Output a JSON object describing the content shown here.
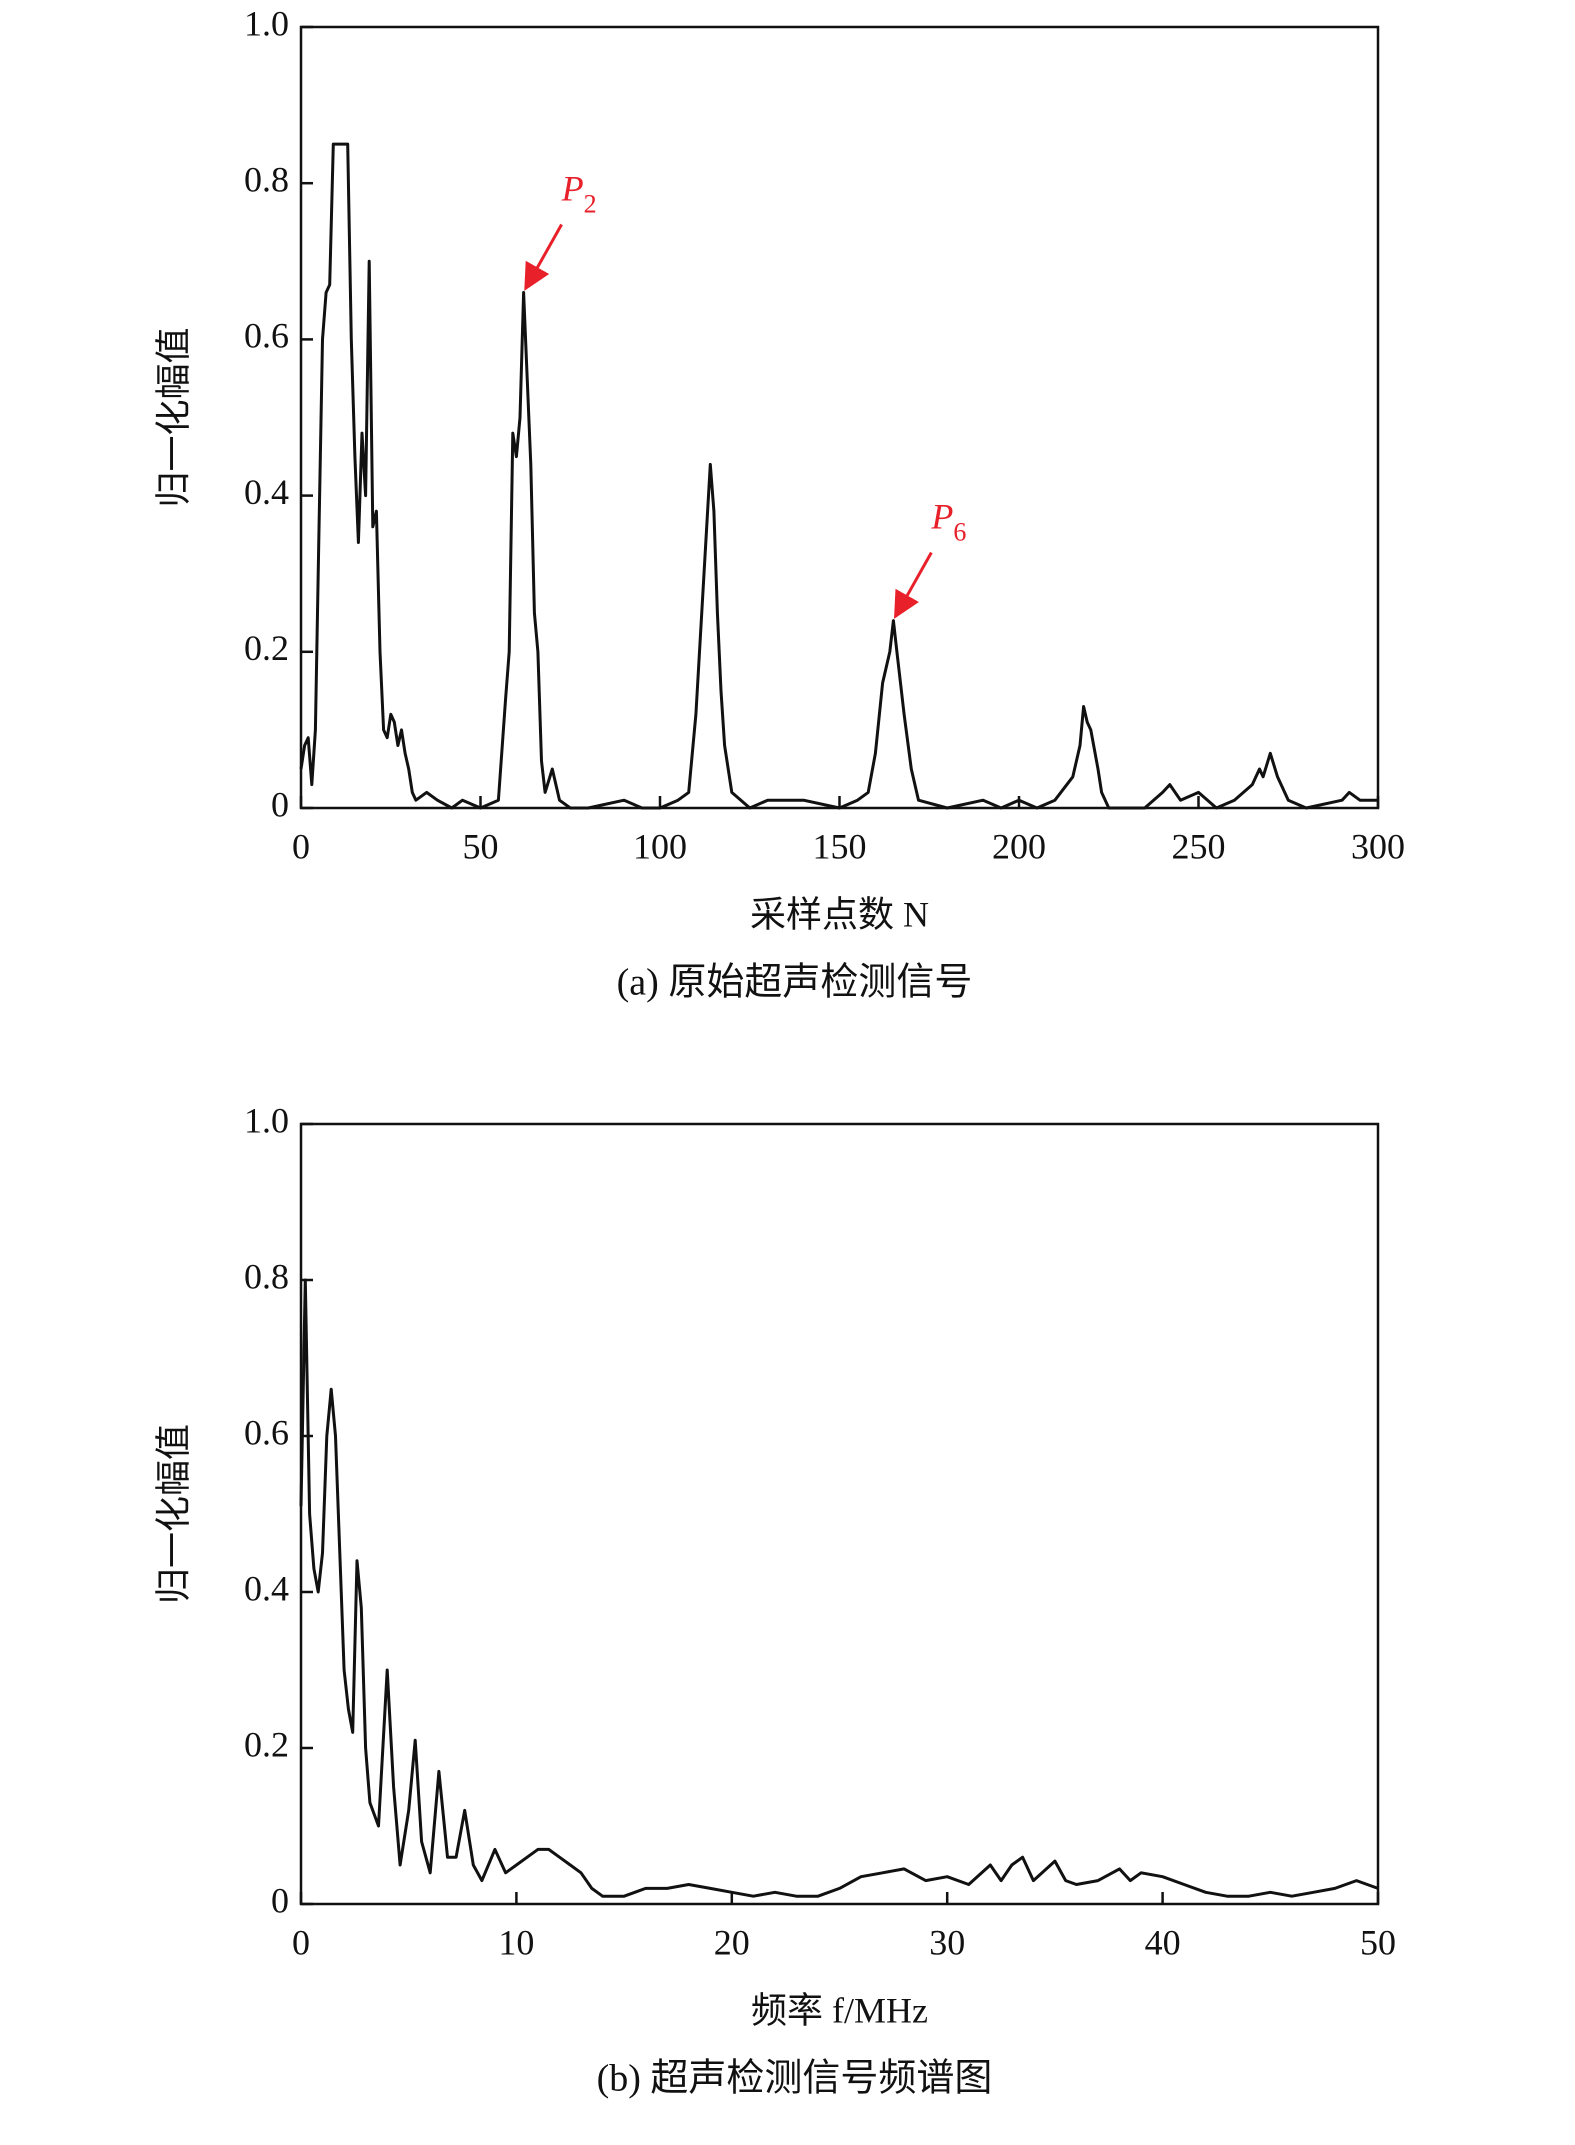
{
  "chart_data": [
    {
      "type": "line",
      "caption": "(a) 原始超声检测信号",
      "xlabel": "采样点数 N",
      "ylabel": "归一化幅值",
      "xlim": [
        0,
        300
      ],
      "xticks": [
        0,
        50,
        100,
        150,
        200,
        250,
        300
      ],
      "ylim": [
        0,
        1
      ],
      "yticks": [
        0,
        0.2,
        0.4,
        0.6,
        0.8,
        {
          "value": 1,
          "label": "1.0"
        }
      ],
      "annotations": [
        {
          "label": "P",
          "subscript": "2",
          "x": 62,
          "y": 0.66,
          "color": "#e8202a"
        },
        {
          "label": "P",
          "subscript": "6",
          "x": 165,
          "y": 0.24,
          "color": "#e8202a"
        }
      ],
      "series": [
        {
          "color": "#111111",
          "x": [
            0,
            1,
            2,
            3,
            4,
            5,
            6,
            7,
            8,
            9,
            10,
            11,
            12,
            13,
            14,
            15,
            16,
            17,
            18,
            19,
            20,
            21,
            22,
            23,
            24,
            25,
            26,
            27,
            28,
            29,
            30,
            31,
            32,
            35,
            38,
            42,
            45,
            50,
            55,
            57,
            58,
            59,
            60,
            61,
            62,
            63,
            64,
            65,
            66,
            67,
            68,
            70,
            72,
            75,
            80,
            90,
            95,
            100,
            105,
            108,
            110,
            112,
            114,
            115,
            116,
            117,
            118,
            120,
            125,
            130,
            140,
            150,
            155,
            158,
            160,
            162,
            164,
            165,
            166,
            167,
            168,
            170,
            172,
            180,
            190,
            195,
            200,
            205,
            210,
            215,
            217,
            218,
            219,
            220,
            222,
            223,
            225,
            235,
            240,
            242,
            245,
            250,
            255,
            260,
            265,
            267,
            268,
            270,
            272,
            275,
            280,
            290,
            292,
            295,
            300
          ],
          "values": [
            0.05,
            0.08,
            0.09,
            0.03,
            0.1,
            0.35,
            0.6,
            0.66,
            0.67,
            0.85,
            0.85,
            0.85,
            0.85,
            0.85,
            0.6,
            0.45,
            0.34,
            0.48,
            0.4,
            0.7,
            0.36,
            0.38,
            0.2,
            0.1,
            0.09,
            0.12,
            0.11,
            0.08,
            0.1,
            0.07,
            0.05,
            0.02,
            0.01,
            0.02,
            0.01,
            0,
            0.01,
            0,
            0.01,
            0.14,
            0.2,
            0.48,
            0.45,
            0.5,
            0.66,
            0.55,
            0.44,
            0.25,
            0.2,
            0.06,
            0.02,
            0.05,
            0.01,
            0,
            0,
            0.01,
            0,
            0,
            0.01,
            0.02,
            0.12,
            0.28,
            0.44,
            0.38,
            0.25,
            0.15,
            0.08,
            0.02,
            0,
            0.01,
            0.01,
            0,
            0.01,
            0.02,
            0.07,
            0.16,
            0.2,
            0.24,
            0.2,
            0.16,
            0.12,
            0.05,
            0.01,
            0,
            0.01,
            0,
            0.01,
            0,
            0.01,
            0.04,
            0.08,
            0.13,
            0.11,
            0.1,
            0.05,
            0.02,
            0,
            0,
            0.02,
            0.03,
            0.01,
            0.02,
            0,
            0.01,
            0.03,
            0.05,
            0.04,
            0.07,
            0.04,
            0.01,
            0,
            0.01,
            0.02,
            0.01,
            0.01
          ]
        }
      ]
    },
    {
      "type": "line",
      "caption": "(b) 超声检测信号频谱图",
      "xlabel": "频率 f/MHz",
      "ylabel": "归一化幅值",
      "xlim": [
        0,
        50
      ],
      "xticks": [
        0,
        10,
        20,
        30,
        40,
        50
      ],
      "ylim": [
        0,
        1
      ],
      "yticks": [
        0,
        0.2,
        0.4,
        0.6,
        0.8,
        {
          "value": 1,
          "label": "1.0"
        }
      ],
      "series": [
        {
          "color": "#111111",
          "x": [
            0,
            0.2,
            0.4,
            0.6,
            0.8,
            1.0,
            1.2,
            1.4,
            1.6,
            1.8,
            2.0,
            2.2,
            2.4,
            2.6,
            2.8,
            3.0,
            3.2,
            3.6,
            4.0,
            4.3,
            4.6,
            5.0,
            5.3,
            5.6,
            6.0,
            6.4,
            6.8,
            7.2,
            7.6,
            8.0,
            8.4,
            9.0,
            9.5,
            10,
            10.5,
            11,
            11.5,
            12,
            12.5,
            13,
            13.5,
            14,
            15,
            16,
            17,
            18,
            19,
            20,
            21,
            22,
            23,
            24,
            25,
            26,
            27,
            28,
            29,
            30,
            31,
            32,
            32.5,
            33,
            33.5,
            34,
            35,
            35.5,
            36,
            37,
            38,
            38.5,
            39,
            40,
            41,
            42,
            43,
            44,
            45,
            46,
            47,
            48,
            49,
            50
          ],
          "values": [
            0.51,
            0.8,
            0.5,
            0.43,
            0.4,
            0.45,
            0.6,
            0.66,
            0.6,
            0.45,
            0.3,
            0.25,
            0.22,
            0.44,
            0.38,
            0.2,
            0.13,
            0.1,
            0.3,
            0.15,
            0.05,
            0.12,
            0.21,
            0.08,
            0.04,
            0.17,
            0.06,
            0.06,
            0.12,
            0.05,
            0.03,
            0.07,
            0.04,
            0.05,
            0.06,
            0.07,
            0.07,
            0.06,
            0.05,
            0.04,
            0.02,
            0.01,
            0.01,
            0.02,
            0.02,
            0.025,
            0.02,
            0.015,
            0.01,
            0.015,
            0.01,
            0.01,
            0.02,
            0.035,
            0.04,
            0.045,
            0.03,
            0.035,
            0.025,
            0.05,
            0.03,
            0.05,
            0.06,
            0.03,
            0.055,
            0.03,
            0.025,
            0.03,
            0.045,
            0.03,
            0.04,
            0.035,
            0.025,
            0.015,
            0.01,
            0.01,
            0.015,
            0.01,
            0.015,
            0.02,
            0.03,
            0.02
          ]
        }
      ]
    }
  ]
}
